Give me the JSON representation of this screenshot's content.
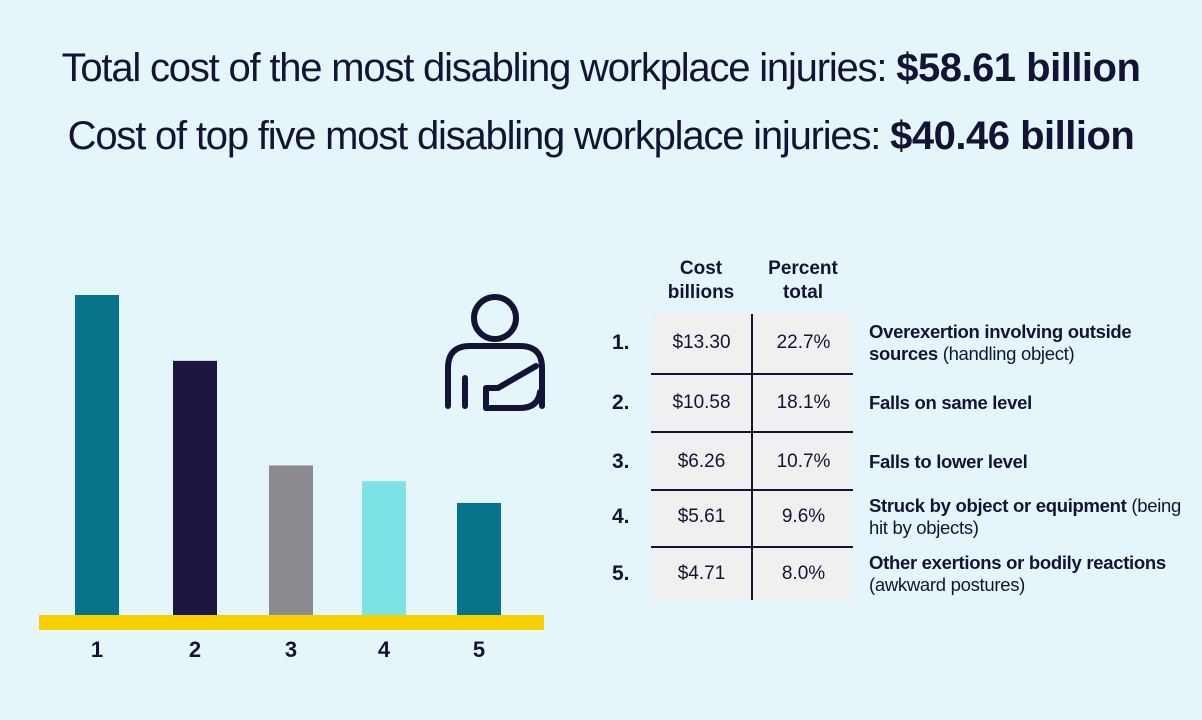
{
  "headlines": [
    {
      "text": "Total cost of the most disabling workplace injuries:",
      "amount": "$58.61 billion"
    },
    {
      "text": "Cost of top five most disabling workplace injuries:",
      "amount": "$40.46 billion"
    }
  ],
  "colors": {
    "background": "#e4f6f9",
    "text": "#151335",
    "baseline": "#f6d000",
    "table_cell": "#f0f0f0"
  },
  "chart_data": {
    "type": "bar",
    "categories": [
      "1",
      "2",
      "3",
      "4",
      "5"
    ],
    "values": [
      13.3,
      10.58,
      6.26,
      5.61,
      4.71
    ],
    "colors": [
      "#07738a",
      "#1b1740",
      "#8a8a8f",
      "#7ee3e6",
      "#07738a"
    ],
    "ylim": [
      0,
      13.3
    ],
    "grid": false
  },
  "table": {
    "headers": {
      "cost": "Cost billions",
      "percent": "Percent total"
    },
    "rows": [
      {
        "rank": "1.",
        "cost": "$13.30",
        "percent": "22.7%",
        "label_bold": "Overexertion involving outside sources",
        "label_note": "(handling object)"
      },
      {
        "rank": "2.",
        "cost": "$10.58",
        "percent": "18.1%",
        "label_bold": "Falls on same level",
        "label_note": ""
      },
      {
        "rank": "3.",
        "cost": "$6.26",
        "percent": "10.7%",
        "label_bold": "Falls to lower level",
        "label_note": ""
      },
      {
        "rank": "4.",
        "cost": "$5.61",
        "percent": "9.6%",
        "label_bold": "Struck by object or equipment",
        "label_note": "(being hit by objects)"
      },
      {
        "rank": "5.",
        "cost": "$4.71",
        "percent": "8.0%",
        "label_bold": "Other exertions or bodily reactions",
        "label_note": "(awkward postures)"
      }
    ]
  },
  "icon": "injured-arm-sling-person-icon"
}
